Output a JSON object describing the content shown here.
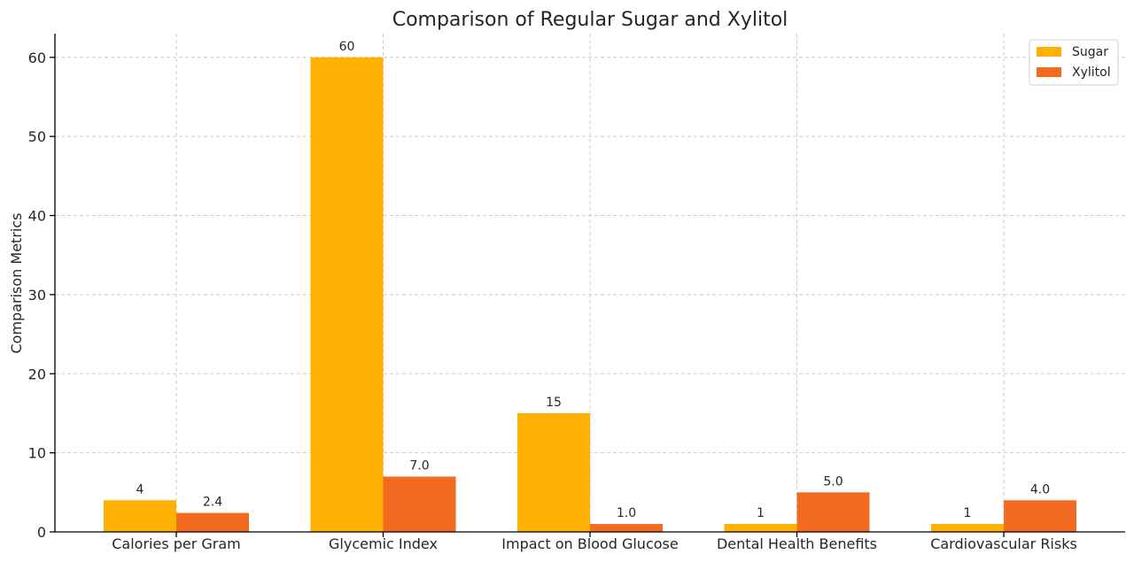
{
  "chart_data": {
    "type": "bar",
    "title": "Comparison of Regular Sugar and Xylitol",
    "xlabel": "",
    "ylabel": "Comparison Metrics",
    "categories": [
      "Calories per Gram",
      "Glycemic Index",
      "Impact on Blood Glucose",
      "Dental Health Benefits",
      "Cardiovascular Risks"
    ],
    "series": [
      {
        "name": "Sugar",
        "values": [
          4,
          60,
          15,
          1,
          1
        ],
        "labels": [
          "4",
          "60",
          "15",
          "1",
          "1"
        ],
        "color": "#FFB000"
      },
      {
        "name": "Xylitol",
        "values": [
          2.4,
          7.0,
          1.0,
          5.0,
          4.0
        ],
        "labels": [
          "2.4",
          "7.0",
          "1.0",
          "5.0",
          "4.0"
        ],
        "color": "#F26B21"
      }
    ],
    "ylim": [
      0,
      63
    ],
    "yticks": [
      0,
      10,
      20,
      30,
      40,
      50,
      60
    ],
    "grid": true,
    "legend": "top-right"
  }
}
